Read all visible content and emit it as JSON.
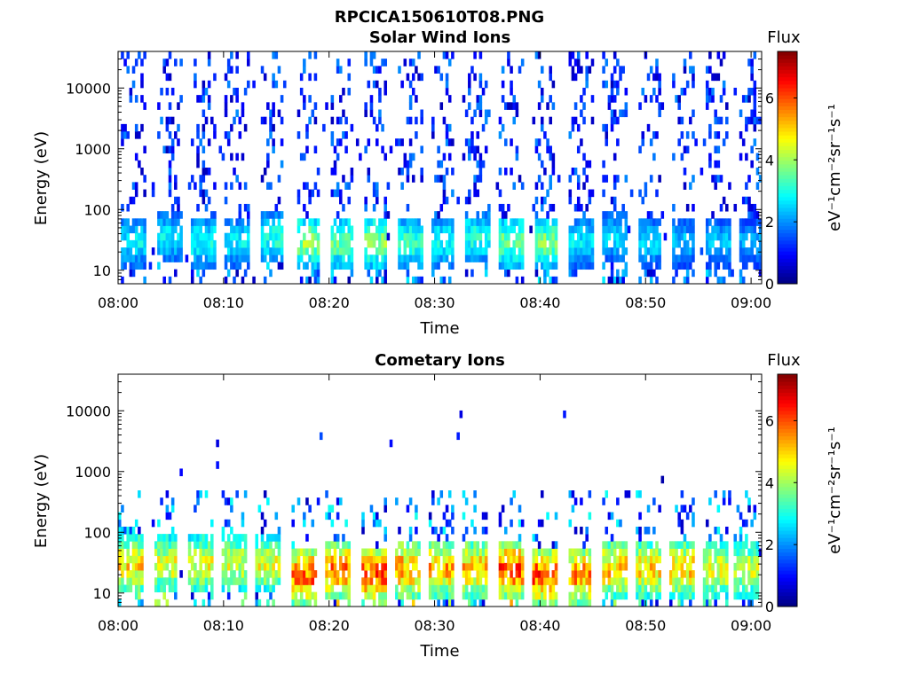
{
  "figure_title": "RPCICA150610T08.PNG",
  "chart_data": [
    {
      "type": "heatmap",
      "title": "Solar Wind Ions",
      "xlabel": "Time",
      "ylabel": "Energy (eV)",
      "yscale": "log",
      "ylim": [
        6,
        40000
      ],
      "x_ticks": [
        "08:00",
        "08:10",
        "08:20",
        "08:30",
        "08:40",
        "08:50",
        "09:00"
      ],
      "xlim_minutes": [
        0,
        61
      ],
      "y_ticks": [
        "10",
        "100",
        "1000",
        "10000"
      ],
      "y_tick_values": [
        10,
        100,
        1000,
        10000
      ],
      "colorbar": {
        "title": "Flux",
        "label": "eV⁻¹cm⁻²sr⁻¹s⁻¹",
        "range": [
          0,
          7.5
        ],
        "ticks": [
          "0",
          "2",
          "4",
          "6"
        ],
        "tick_values": [
          0,
          2,
          4,
          6
        ],
        "colormap": "jet"
      },
      "pattern": {
        "sweep_period_minutes": 3.2,
        "bursts": [
          {
            "t": 1.5,
            "peak_energy_eV": 30,
            "peak_flux": 3.0
          },
          {
            "t": 4.9,
            "peak_energy_eV": 35,
            "peak_flux": 3.0
          },
          {
            "t": 8.1,
            "peak_energy_eV": 30,
            "peak_flux": 3.2
          },
          {
            "t": 11.3,
            "peak_energy_eV": 30,
            "peak_flux": 3.0
          },
          {
            "t": 14.6,
            "peak_energy_eV": 35,
            "peak_flux": 3.4
          },
          {
            "t": 18.0,
            "peak_energy_eV": 30,
            "peak_flux": 4.3
          },
          {
            "t": 21.2,
            "peak_energy_eV": 30,
            "peak_flux": 4.0
          },
          {
            "t": 24.4,
            "peak_energy_eV": 30,
            "peak_flux": 4.3
          },
          {
            "t": 27.7,
            "peak_energy_eV": 30,
            "peak_flux": 3.6
          },
          {
            "t": 30.8,
            "peak_energy_eV": 30,
            "peak_flux": 3.3
          },
          {
            "t": 34.1,
            "peak_energy_eV": 35,
            "peak_flux": 3.4
          },
          {
            "t": 37.3,
            "peak_energy_eV": 30,
            "peak_flux": 4.0
          },
          {
            "t": 40.6,
            "peak_energy_eV": 30,
            "peak_flux": 4.1
          },
          {
            "t": 43.9,
            "peak_energy_eV": 30,
            "peak_flux": 3.0
          },
          {
            "t": 47.1,
            "peak_energy_eV": 35,
            "peak_flux": 2.8
          },
          {
            "t": 50.4,
            "peak_energy_eV": 30,
            "peak_flux": 2.8
          },
          {
            "t": 53.6,
            "peak_energy_eV": 30,
            "peak_flux": 2.6
          },
          {
            "t": 56.8,
            "peak_energy_eV": 30,
            "peak_flux": 2.6
          },
          {
            "t": 60.0,
            "peak_energy_eV": 30,
            "peak_flux": 2.4
          }
        ]
      }
    },
    {
      "type": "heatmap",
      "title": "Cometary Ions",
      "xlabel": "Time",
      "ylabel": "Energy (eV)",
      "yscale": "log",
      "ylim": [
        6,
        40000
      ],
      "x_ticks": [
        "08:00",
        "08:10",
        "08:20",
        "08:30",
        "08:40",
        "08:50",
        "09:00"
      ],
      "xlim_minutes": [
        0,
        61
      ],
      "y_ticks": [
        "10",
        "100",
        "1000",
        "10000"
      ],
      "y_tick_values": [
        10,
        100,
        1000,
        10000
      ],
      "colorbar": {
        "title": "Flux",
        "label": "eV⁻¹cm⁻²sr⁻¹s⁻¹",
        "range": [
          0,
          7.5
        ],
        "ticks": [
          "0",
          "2",
          "4",
          "6"
        ],
        "tick_values": [
          0,
          2,
          4,
          6
        ],
        "colormap": "jet"
      },
      "pattern": {
        "sweep_period_minutes": 3.2,
        "bursts": [
          {
            "t": 1.2,
            "peak_energy_eV": 30,
            "peak_flux": 5.5
          },
          {
            "t": 4.5,
            "peak_energy_eV": 30,
            "peak_flux": 5.0
          },
          {
            "t": 7.8,
            "peak_energy_eV": 30,
            "peak_flux": 5.0
          },
          {
            "t": 11.0,
            "peak_energy_eV": 30,
            "peak_flux": 4.8
          },
          {
            "t": 14.2,
            "peak_energy_eV": 30,
            "peak_flux": 5.0
          },
          {
            "t": 17.6,
            "peak_energy_eV": 20,
            "peak_flux": 6.4
          },
          {
            "t": 20.8,
            "peak_energy_eV": 25,
            "peak_flux": 6.2
          },
          {
            "t": 24.2,
            "peak_energy_eV": 20,
            "peak_flux": 6.6
          },
          {
            "t": 27.4,
            "peak_energy_eV": 25,
            "peak_flux": 6.0
          },
          {
            "t": 30.6,
            "peak_energy_eV": 25,
            "peak_flux": 5.8
          },
          {
            "t": 33.9,
            "peak_energy_eV": 25,
            "peak_flux": 5.7
          },
          {
            "t": 37.2,
            "peak_energy_eV": 25,
            "peak_flux": 6.6
          },
          {
            "t": 40.5,
            "peak_energy_eV": 20,
            "peak_flux": 6.6
          },
          {
            "t": 43.8,
            "peak_energy_eV": 20,
            "peak_flux": 6.2
          },
          {
            "t": 47.0,
            "peak_energy_eV": 25,
            "peak_flux": 5.6
          },
          {
            "t": 50.2,
            "peak_energy_eV": 25,
            "peak_flux": 5.4
          },
          {
            "t": 53.4,
            "peak_energy_eV": 25,
            "peak_flux": 5.6
          },
          {
            "t": 56.6,
            "peak_energy_eV": 25,
            "peak_flux": 5.0
          },
          {
            "t": 59.6,
            "peak_energy_eV": 25,
            "peak_flux": 4.8
          }
        ]
      }
    }
  ]
}
